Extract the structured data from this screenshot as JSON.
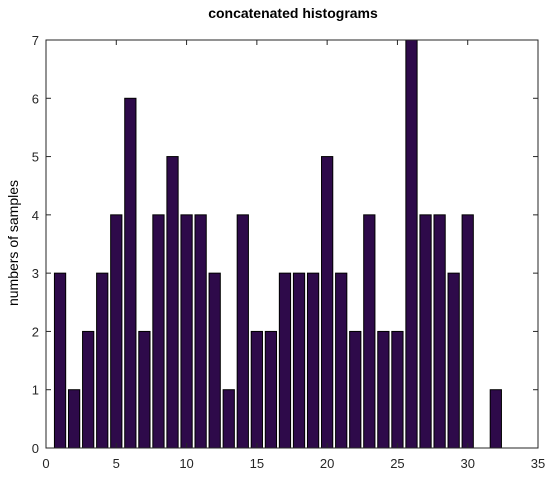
{
  "chart_data": {
    "type": "bar",
    "title": "concatenated histograms",
    "xlabel": "",
    "ylabel": "numbers of samples",
    "xlim": [
      0,
      35
    ],
    "ylim": [
      0,
      7
    ],
    "xticks": [
      "0",
      "5",
      "10",
      "15",
      "20",
      "25",
      "30",
      "35"
    ],
    "yticks": [
      "0",
      "1",
      "2",
      "3",
      "4",
      "5",
      "6",
      "7"
    ],
    "grid": false,
    "bar_color": "#2e0a4a",
    "bar_edge_color": "#000000",
    "x": [
      1,
      2,
      3,
      4,
      5,
      6,
      7,
      8,
      9,
      10,
      11,
      12,
      13,
      14,
      15,
      16,
      17,
      18,
      19,
      20,
      21,
      22,
      23,
      24,
      25,
      26,
      27,
      28,
      29,
      30,
      31,
      32
    ],
    "values": [
      3,
      1,
      2,
      3,
      4,
      6,
      2,
      4,
      5,
      4,
      4,
      3,
      1,
      4,
      2,
      2,
      3,
      3,
      3,
      5,
      3,
      2,
      4,
      2,
      2,
      7,
      4,
      4,
      3,
      4,
      0,
      1
    ]
  }
}
